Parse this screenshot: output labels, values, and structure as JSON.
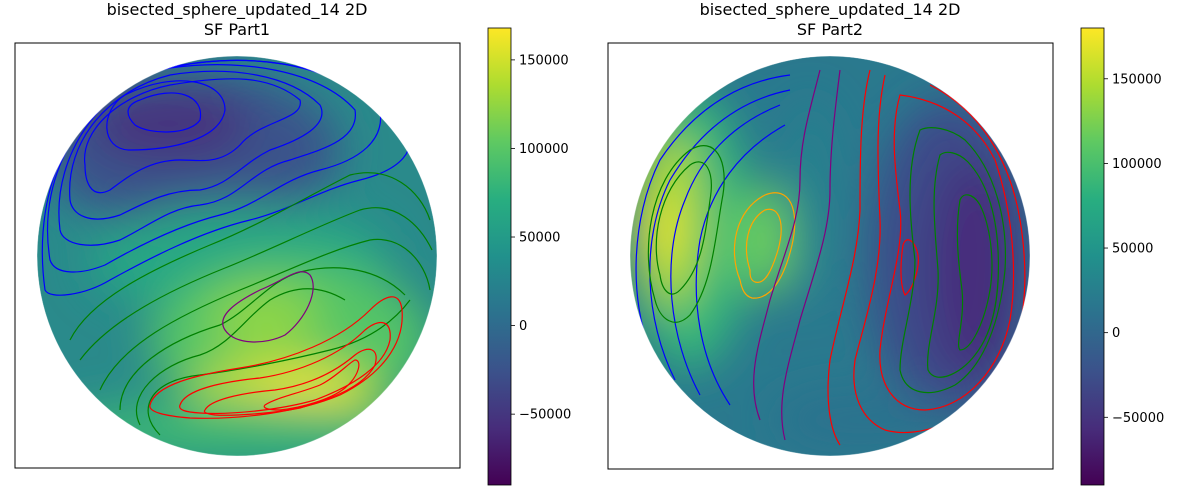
{
  "chart_data": [
    {
      "type": "heatmap",
      "title": "bisected_sphere_updated_14 2D",
      "subtitle": "SF Part1",
      "xlabel": "",
      "ylabel": "",
      "grid": false,
      "colormap": "viridis",
      "colorbar": {
        "min": -90000,
        "max": 168000,
        "ticks": [
          -50000,
          0,
          50000,
          100000,
          150000
        ],
        "tick_labels": [
          "−50000",
          "0",
          "50000",
          "100000",
          "150000"
        ]
      },
      "field_peaks": [
        {
          "region": "upper-left low",
          "value": -80000
        },
        {
          "region": "lower-right high",
          "value": 165000
        },
        {
          "region": "center-right high",
          "value": 130000
        }
      ],
      "contour_colors": [
        "#0000ff",
        "#008000",
        "#800080",
        "#ff0000"
      ]
    },
    {
      "type": "heatmap",
      "title": "bisected_sphere_updated_14 2D",
      "subtitle": "SF Part2",
      "xlabel": "",
      "ylabel": "",
      "grid": false,
      "colormap": "viridis",
      "colorbar": {
        "min": -90000,
        "max": 180000,
        "ticks": [
          -50000,
          0,
          50000,
          100000,
          150000
        ],
        "tick_labels": [
          "−50000",
          "0",
          "50000",
          "100000",
          "150000"
        ]
      },
      "field_peaks": [
        {
          "region": "left high",
          "value": 175000
        },
        {
          "region": "center-left high",
          "value": 110000
        },
        {
          "region": "right low",
          "value": -80000
        }
      ],
      "contour_colors": [
        "#0000ff",
        "#008000",
        "#800080",
        "#ffa500",
        "#ff0000"
      ]
    }
  ]
}
